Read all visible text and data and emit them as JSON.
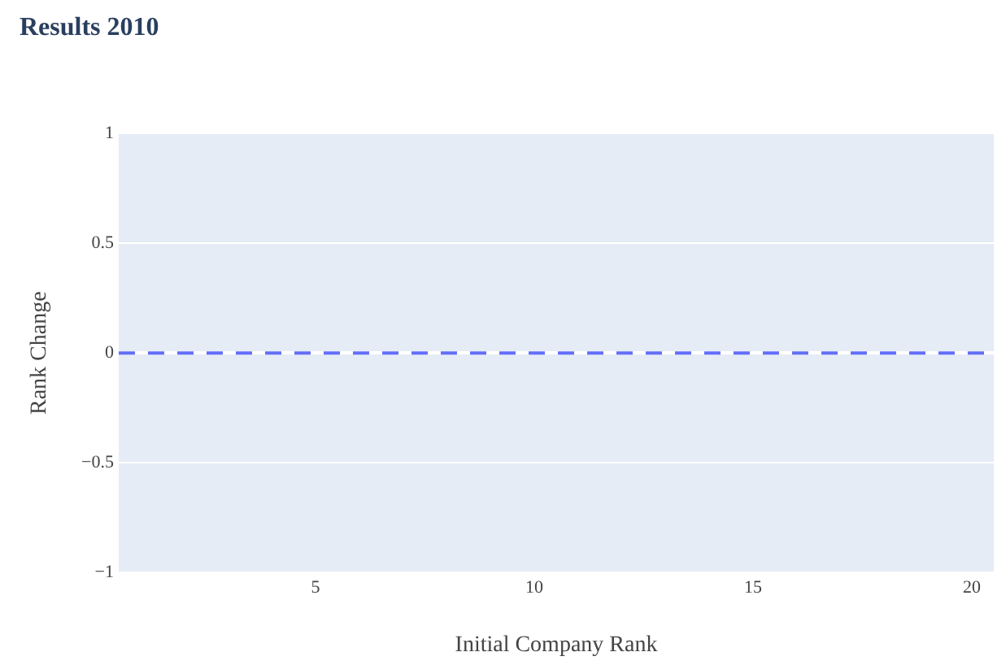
{
  "chart_data": {
    "type": "line",
    "title": "Results 2010",
    "xlabel": "Initial Company Rank",
    "ylabel": "Rank Change",
    "series": [
      {
        "color": "#636efa",
        "x": [
          0.5,
          20.5
        ],
        "values": [
          0,
          0
        ]
      }
    ],
    "line_style": "dashed",
    "xlim": [
      0.5,
      20.5
    ],
    "xticks": [
      5,
      10,
      15,
      20
    ],
    "ylim": [
      -1,
      1
    ],
    "yticks": [
      {
        "value": -1,
        "label": "−1"
      },
      {
        "value": -0.5,
        "label": "−0.5"
      },
      0,
      0.5,
      1
    ],
    "grid": "y",
    "legend": false
  }
}
